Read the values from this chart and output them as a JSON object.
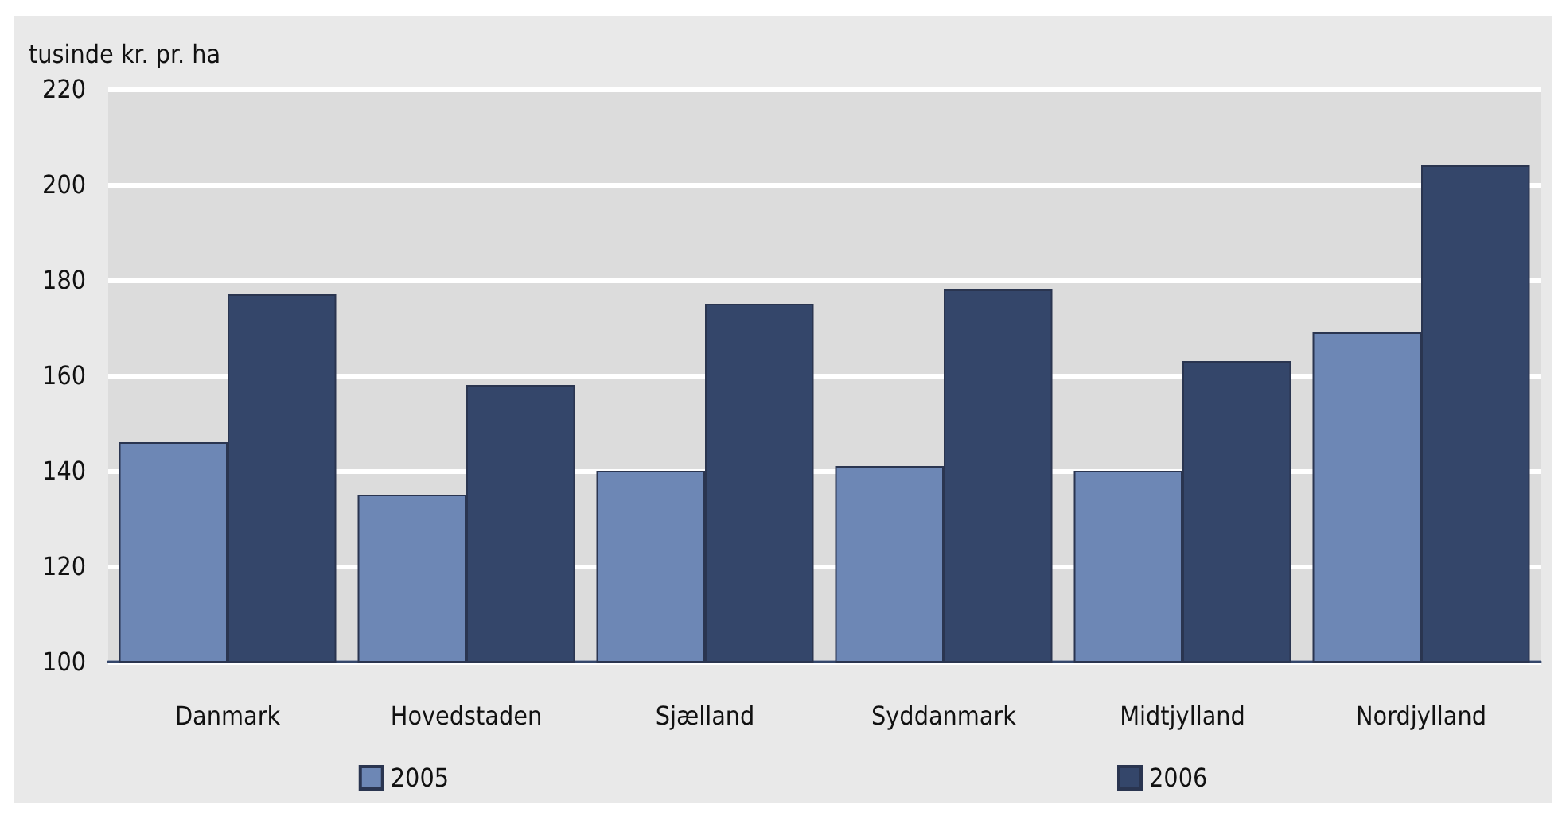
{
  "chart_data": {
    "type": "bar",
    "ylabel": "tusinde kr. pr. ha",
    "categories": [
      "Danmark",
      "Hovedstaden",
      "Sjælland",
      "Syddanmark",
      "Midtjylland",
      "Nordjylland"
    ],
    "series": [
      {
        "name": "2005",
        "color": "#6d87b5",
        "values": [
          146,
          135,
          140,
          141,
          140,
          169
        ]
      },
      {
        "name": "2006",
        "color": "#34466a",
        "values": [
          177,
          158,
          175,
          178,
          163,
          204
        ]
      }
    ],
    "ylim": [
      100,
      220
    ],
    "yticks": [
      100,
      120,
      140,
      160,
      180,
      200,
      220
    ],
    "grid": "y",
    "legend": "bottom"
  }
}
